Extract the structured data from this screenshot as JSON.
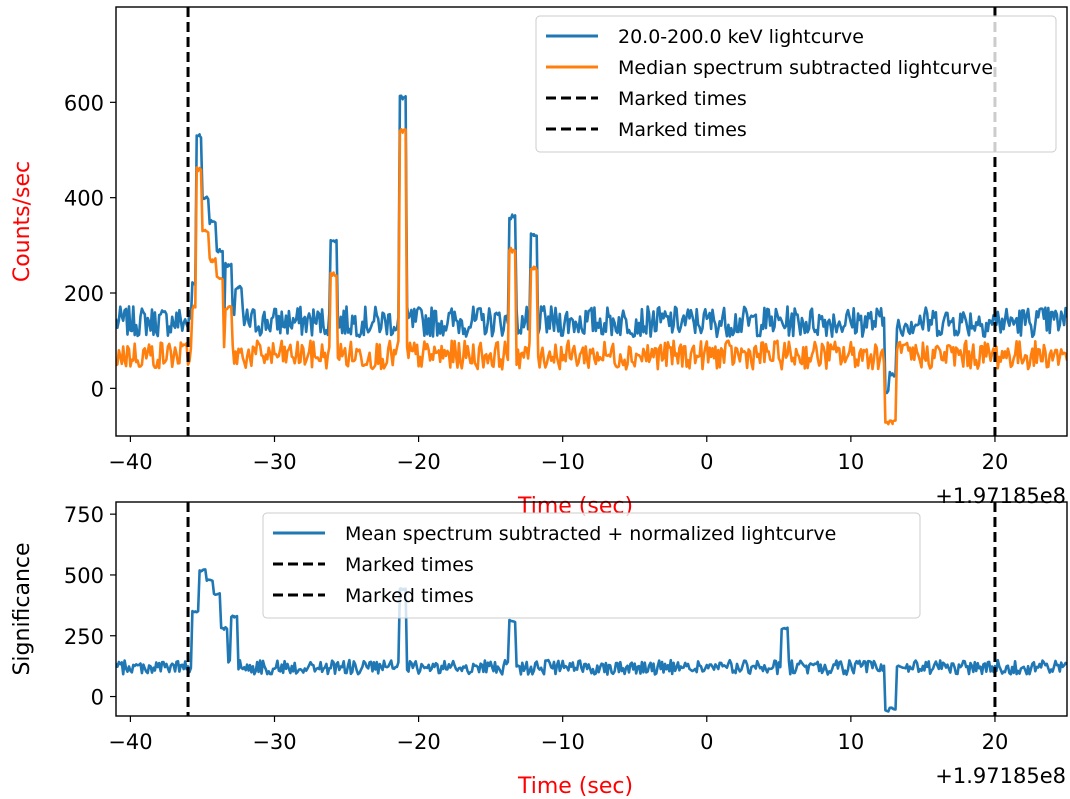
{
  "chart_data": [
    {
      "type": "line",
      "xlabel": "Time (sec)",
      "ylabel": "Counts/sec",
      "label_color": "#ff0000",
      "xlim": [
        -41,
        25
      ],
      "ylim": [
        -100,
        800
      ],
      "x_offset_label": "+1.97185e8",
      "xticks": [
        -40,
        -30,
        -20,
        -10,
        0,
        10,
        20
      ],
      "xtick_labels": [
        "−40",
        "−30",
        "−20",
        "−10",
        "0",
        "10",
        "20"
      ],
      "yticks": [
        0,
        200,
        400,
        600
      ],
      "ytick_labels": [
        "0",
        "200",
        "400",
        "600"
      ],
      "legend_position": "top-right",
      "grid": false,
      "series": [
        {
          "name": "20.0-200.0 keV lightcurve",
          "color": "#1f77b4",
          "baseline": 140,
          "noise": 32,
          "features": [
            {
              "x": -35.5,
              "y": 220
            },
            {
              "x": -35.2,
              "y": 530
            },
            {
              "x": -34.8,
              "y": 400
            },
            {
              "x": -34.3,
              "y": 350
            },
            {
              "x": -33.8,
              "y": 290
            },
            {
              "x": -33.2,
              "y": 260
            },
            {
              "x": -32.5,
              "y": 210
            },
            {
              "x": -25.9,
              "y": 310
            },
            {
              "x": -21.1,
              "y": 610
            },
            {
              "x": -13.5,
              "y": 360
            },
            {
              "x": -12.0,
              "y": 320
            },
            {
              "x": 12.6,
              "y": -5
            },
            {
              "x": 12.9,
              "y": 30
            }
          ]
        },
        {
          "name": "Median spectrum subtracted lightcurve",
          "color": "#ff7f0e",
          "baseline": 70,
          "noise": 30,
          "features": [
            {
              "x": -35.5,
              "y": 170
            },
            {
              "x": -35.2,
              "y": 460
            },
            {
              "x": -34.8,
              "y": 330
            },
            {
              "x": -34.3,
              "y": 270
            },
            {
              "x": -33.8,
              "y": 230
            },
            {
              "x": -33.2,
              "y": 170
            },
            {
              "x": -25.9,
              "y": 240
            },
            {
              "x": -21.1,
              "y": 540
            },
            {
              "x": -13.5,
              "y": 290
            },
            {
              "x": -12.0,
              "y": 250
            },
            {
              "x": 12.6,
              "y": -75
            },
            {
              "x": 12.9,
              "y": -70
            }
          ]
        }
      ],
      "marked_times": [
        {
          "name": "Marked times",
          "x": -36,
          "color": "#000000",
          "style": "dashed"
        },
        {
          "name": "Marked times",
          "x": 20,
          "color": "#000000",
          "style": "dashed"
        }
      ]
    },
    {
      "type": "line",
      "xlabel": "Time (sec)",
      "ylabel": "Significance",
      "label_color": "#ff0000",
      "ylabel_color": "#000000",
      "xlim": [
        -41,
        25
      ],
      "ylim": [
        -80,
        800
      ],
      "x_offset_label": "+1.97185e8",
      "xticks": [
        -40,
        -30,
        -20,
        -10,
        0,
        10,
        20
      ],
      "xtick_labels": [
        "−40",
        "−30",
        "−20",
        "−10",
        "0",
        "10",
        "20"
      ],
      "yticks": [
        0,
        250,
        500,
        750
      ],
      "ytick_labels": [
        "0",
        "250",
        "500",
        "750"
      ],
      "legend_position": "top-center",
      "grid": false,
      "series": [
        {
          "name": "Mean spectrum subtracted + normalized lightcurve",
          "color": "#1f77b4",
          "baseline": 120,
          "noise": 30,
          "features": [
            {
              "x": -35.5,
              "y": 350
            },
            {
              "x": -35.0,
              "y": 520
            },
            {
              "x": -34.5,
              "y": 480
            },
            {
              "x": -34.0,
              "y": 420
            },
            {
              "x": -33.5,
              "y": 280
            },
            {
              "x": -32.8,
              "y": 330
            },
            {
              "x": -21.1,
              "y": 440
            },
            {
              "x": -13.5,
              "y": 310
            },
            {
              "x": 5.4,
              "y": 280
            },
            {
              "x": 12.6,
              "y": -60
            },
            {
              "x": 12.9,
              "y": -50
            }
          ]
        }
      ],
      "marked_times": [
        {
          "name": "Marked times",
          "x": -36,
          "color": "#000000",
          "style": "dashed"
        },
        {
          "name": "Marked times",
          "x": 20,
          "color": "#000000",
          "style": "dashed"
        }
      ]
    }
  ]
}
